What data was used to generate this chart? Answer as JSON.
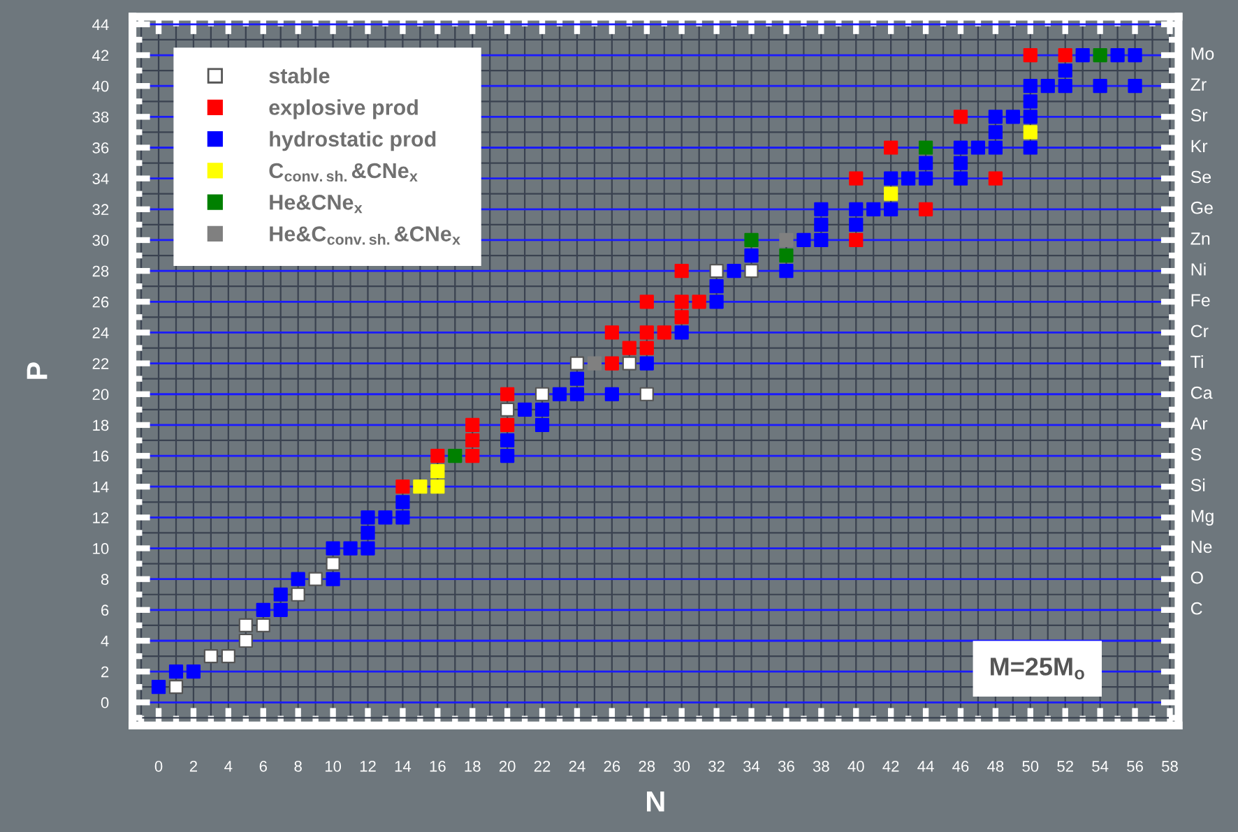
{
  "chart_data": {
    "type": "scatter",
    "xlabel": "N",
    "ylabel": "P",
    "xlim": [
      -1.5,
      58.5
    ],
    "ylim": [
      -1.5,
      44.5
    ],
    "xticks": [
      0,
      2,
      4,
      6,
      8,
      10,
      12,
      14,
      16,
      18,
      20,
      22,
      24,
      26,
      28,
      30,
      32,
      34,
      36,
      38,
      40,
      42,
      44,
      46,
      48,
      50,
      52,
      54,
      56,
      58
    ],
    "yticks": [
      0,
      2,
      4,
      6,
      8,
      10,
      12,
      14,
      16,
      18,
      20,
      22,
      24,
      26,
      28,
      30,
      32,
      34,
      36,
      38,
      40,
      42,
      44
    ],
    "grid": true,
    "legend": "top left",
    "marker": "square",
    "annotations": [
      "M=25M$_{o}$",
      "C",
      "O",
      "Ne",
      "Mg",
      "Si",
      "S",
      "Ar",
      "Ca",
      "Ti",
      "Cr",
      "Fe",
      "Ni",
      "Zn",
      "Ge",
      "Se",
      "Kr",
      "Sr",
      "Zr",
      "Mo"
    ],
    "series": [
      {
        "name": "stable",
        "color": "#ffffff",
        "x": [
          1,
          3,
          4,
          5,
          5,
          6,
          8,
          9,
          10,
          20,
          22,
          24,
          27,
          28,
          32,
          34
        ],
        "values": [
          1,
          3,
          3,
          4,
          5,
          5,
          7,
          8,
          9,
          19,
          20,
          22,
          22,
          20,
          28,
          28
        ]
      },
      {
        "name": "explosive prod",
        "color": "#ff0000",
        "x": [
          14,
          16,
          18,
          18,
          18,
          20,
          20,
          26,
          27,
          28,
          26,
          28,
          29,
          30,
          28,
          30,
          31,
          30,
          40,
          40,
          44,
          42,
          48,
          46,
          50,
          52
        ],
        "values": [
          14,
          16,
          16,
          17,
          18,
          18,
          20,
          22,
          23,
          23,
          24,
          24,
          24,
          25,
          26,
          26,
          26,
          28,
          30,
          34,
          32,
          36,
          34,
          38,
          42,
          42
        ]
      },
      {
        "name": "hydrostatic prod",
        "color": "#0000ff",
        "x": [
          0,
          1,
          2,
          6,
          7,
          7,
          8,
          10,
          10,
          11,
          12,
          12,
          12,
          13,
          14,
          14,
          20,
          20,
          21,
          22,
          22,
          23,
          24,
          24,
          26,
          28,
          30,
          32,
          32,
          33,
          34,
          36,
          37,
          38,
          38,
          38,
          40,
          40,
          41,
          42,
          42,
          43,
          44,
          44,
          46,
          46,
          46,
          47,
          48,
          48,
          48,
          49,
          50,
          50,
          50,
          50,
          51,
          52,
          52,
          53,
          54,
          55,
          56,
          56
        ],
        "values": [
          1,
          2,
          2,
          6,
          6,
          7,
          8,
          8,
          10,
          10,
          10,
          11,
          12,
          12,
          12,
          13,
          16,
          17,
          19,
          19,
          18,
          20,
          20,
          21,
          20,
          22,
          24,
          26,
          27,
          28,
          29,
          28,
          30,
          30,
          31,
          32,
          31,
          32,
          32,
          32,
          34,
          34,
          34,
          35,
          34,
          35,
          36,
          36,
          36,
          37,
          38,
          38,
          38,
          36,
          39,
          40,
          40,
          40,
          41,
          42,
          40,
          42,
          42,
          40
        ]
      },
      {
        "name": "C$_{conv.sh.}$&CNe$_{x}$",
        "color": "#ffff00",
        "x": [
          15,
          16,
          16,
          42,
          50
        ],
        "values": [
          14,
          14,
          15,
          33,
          37
        ]
      },
      {
        "name": "He&CNe$_{x}$",
        "color": "#008000",
        "x": [
          17,
          34,
          36,
          44,
          54
        ],
        "values": [
          16,
          30,
          29,
          36,
          42
        ]
      },
      {
        "name": "He&C$_{conv.sh.}$&CNe$_{x}$",
        "color": "#808080",
        "x": [
          25,
          36
        ],
        "values": [
          22,
          30
        ]
      }
    ]
  }
}
